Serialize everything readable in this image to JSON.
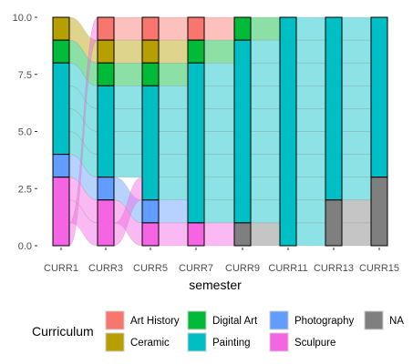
{
  "chart_data": {
    "type": "alluvial",
    "xlabel": "semester",
    "ylabel": "",
    "ylim": [
      0,
      10
    ],
    "y_ticks": [
      "0.0",
      "2.5",
      "5.0",
      "7.5",
      "10.0"
    ],
    "categories": [
      "CURR1",
      "CURR3",
      "CURR5",
      "CURR7",
      "CURR9",
      "CURR11",
      "CURR13",
      "CURR15"
    ],
    "strata_order": [
      "Art History",
      "Ceramic",
      "Digital Art",
      "Painting",
      "Photography",
      "Sculpure",
      "NA"
    ],
    "strata": [
      {
        "semester": "CURR1",
        "segments": [
          [
            "Ceramic",
            1
          ],
          [
            "Digital Art",
            1
          ],
          [
            "Painting",
            4
          ],
          [
            "Photography",
            1
          ],
          [
            "Sculpure",
            3
          ]
        ]
      },
      {
        "semester": "CURR3",
        "segments": [
          [
            "Art History",
            1
          ],
          [
            "Ceramic",
            1
          ],
          [
            "Digital Art",
            1
          ],
          [
            "Painting",
            4
          ],
          [
            "Photography",
            1
          ],
          [
            "Sculpure",
            2
          ]
        ]
      },
      {
        "semester": "CURR5",
        "segments": [
          [
            "Art History",
            1
          ],
          [
            "Ceramic",
            1
          ],
          [
            "Digital Art",
            1
          ],
          [
            "Painting",
            5
          ],
          [
            "Photography",
            1
          ],
          [
            "Sculpure",
            1
          ]
        ]
      },
      {
        "semester": "CURR7",
        "segments": [
          [
            "Art History",
            1
          ],
          [
            "Digital Art",
            1
          ],
          [
            "Painting",
            7
          ],
          [
            "Sculpure",
            1
          ]
        ]
      },
      {
        "semester": "CURR9",
        "segments": [
          [
            "Digital Art",
            1
          ],
          [
            "Painting",
            8
          ],
          [
            "NA",
            1
          ]
        ]
      },
      {
        "semester": "CURR11",
        "segments": [
          [
            "Painting",
            10
          ]
        ]
      },
      {
        "semester": "CURR13",
        "segments": [
          [
            "Painting",
            8
          ],
          [
            "NA",
            2
          ]
        ]
      },
      {
        "semester": "CURR15",
        "segments": [
          [
            "Painting",
            7
          ],
          [
            "NA",
            3
          ]
        ]
      }
    ],
    "legend": {
      "title": "Curriculum",
      "position": "bottom",
      "items": [
        "Art History",
        "Ceramic",
        "Digital Art",
        "Painting",
        "Photography",
        "Sculpure",
        "NA"
      ]
    },
    "colors": {
      "Art History": "#F8766D",
      "Ceramic": "#B79F00",
      "Digital Art": "#00BA38",
      "Painting": "#00BFC4",
      "Photography": "#619CFF",
      "Sculpure": "#F564E3",
      "NA": "#7F7F7F"
    },
    "grid": false
  }
}
